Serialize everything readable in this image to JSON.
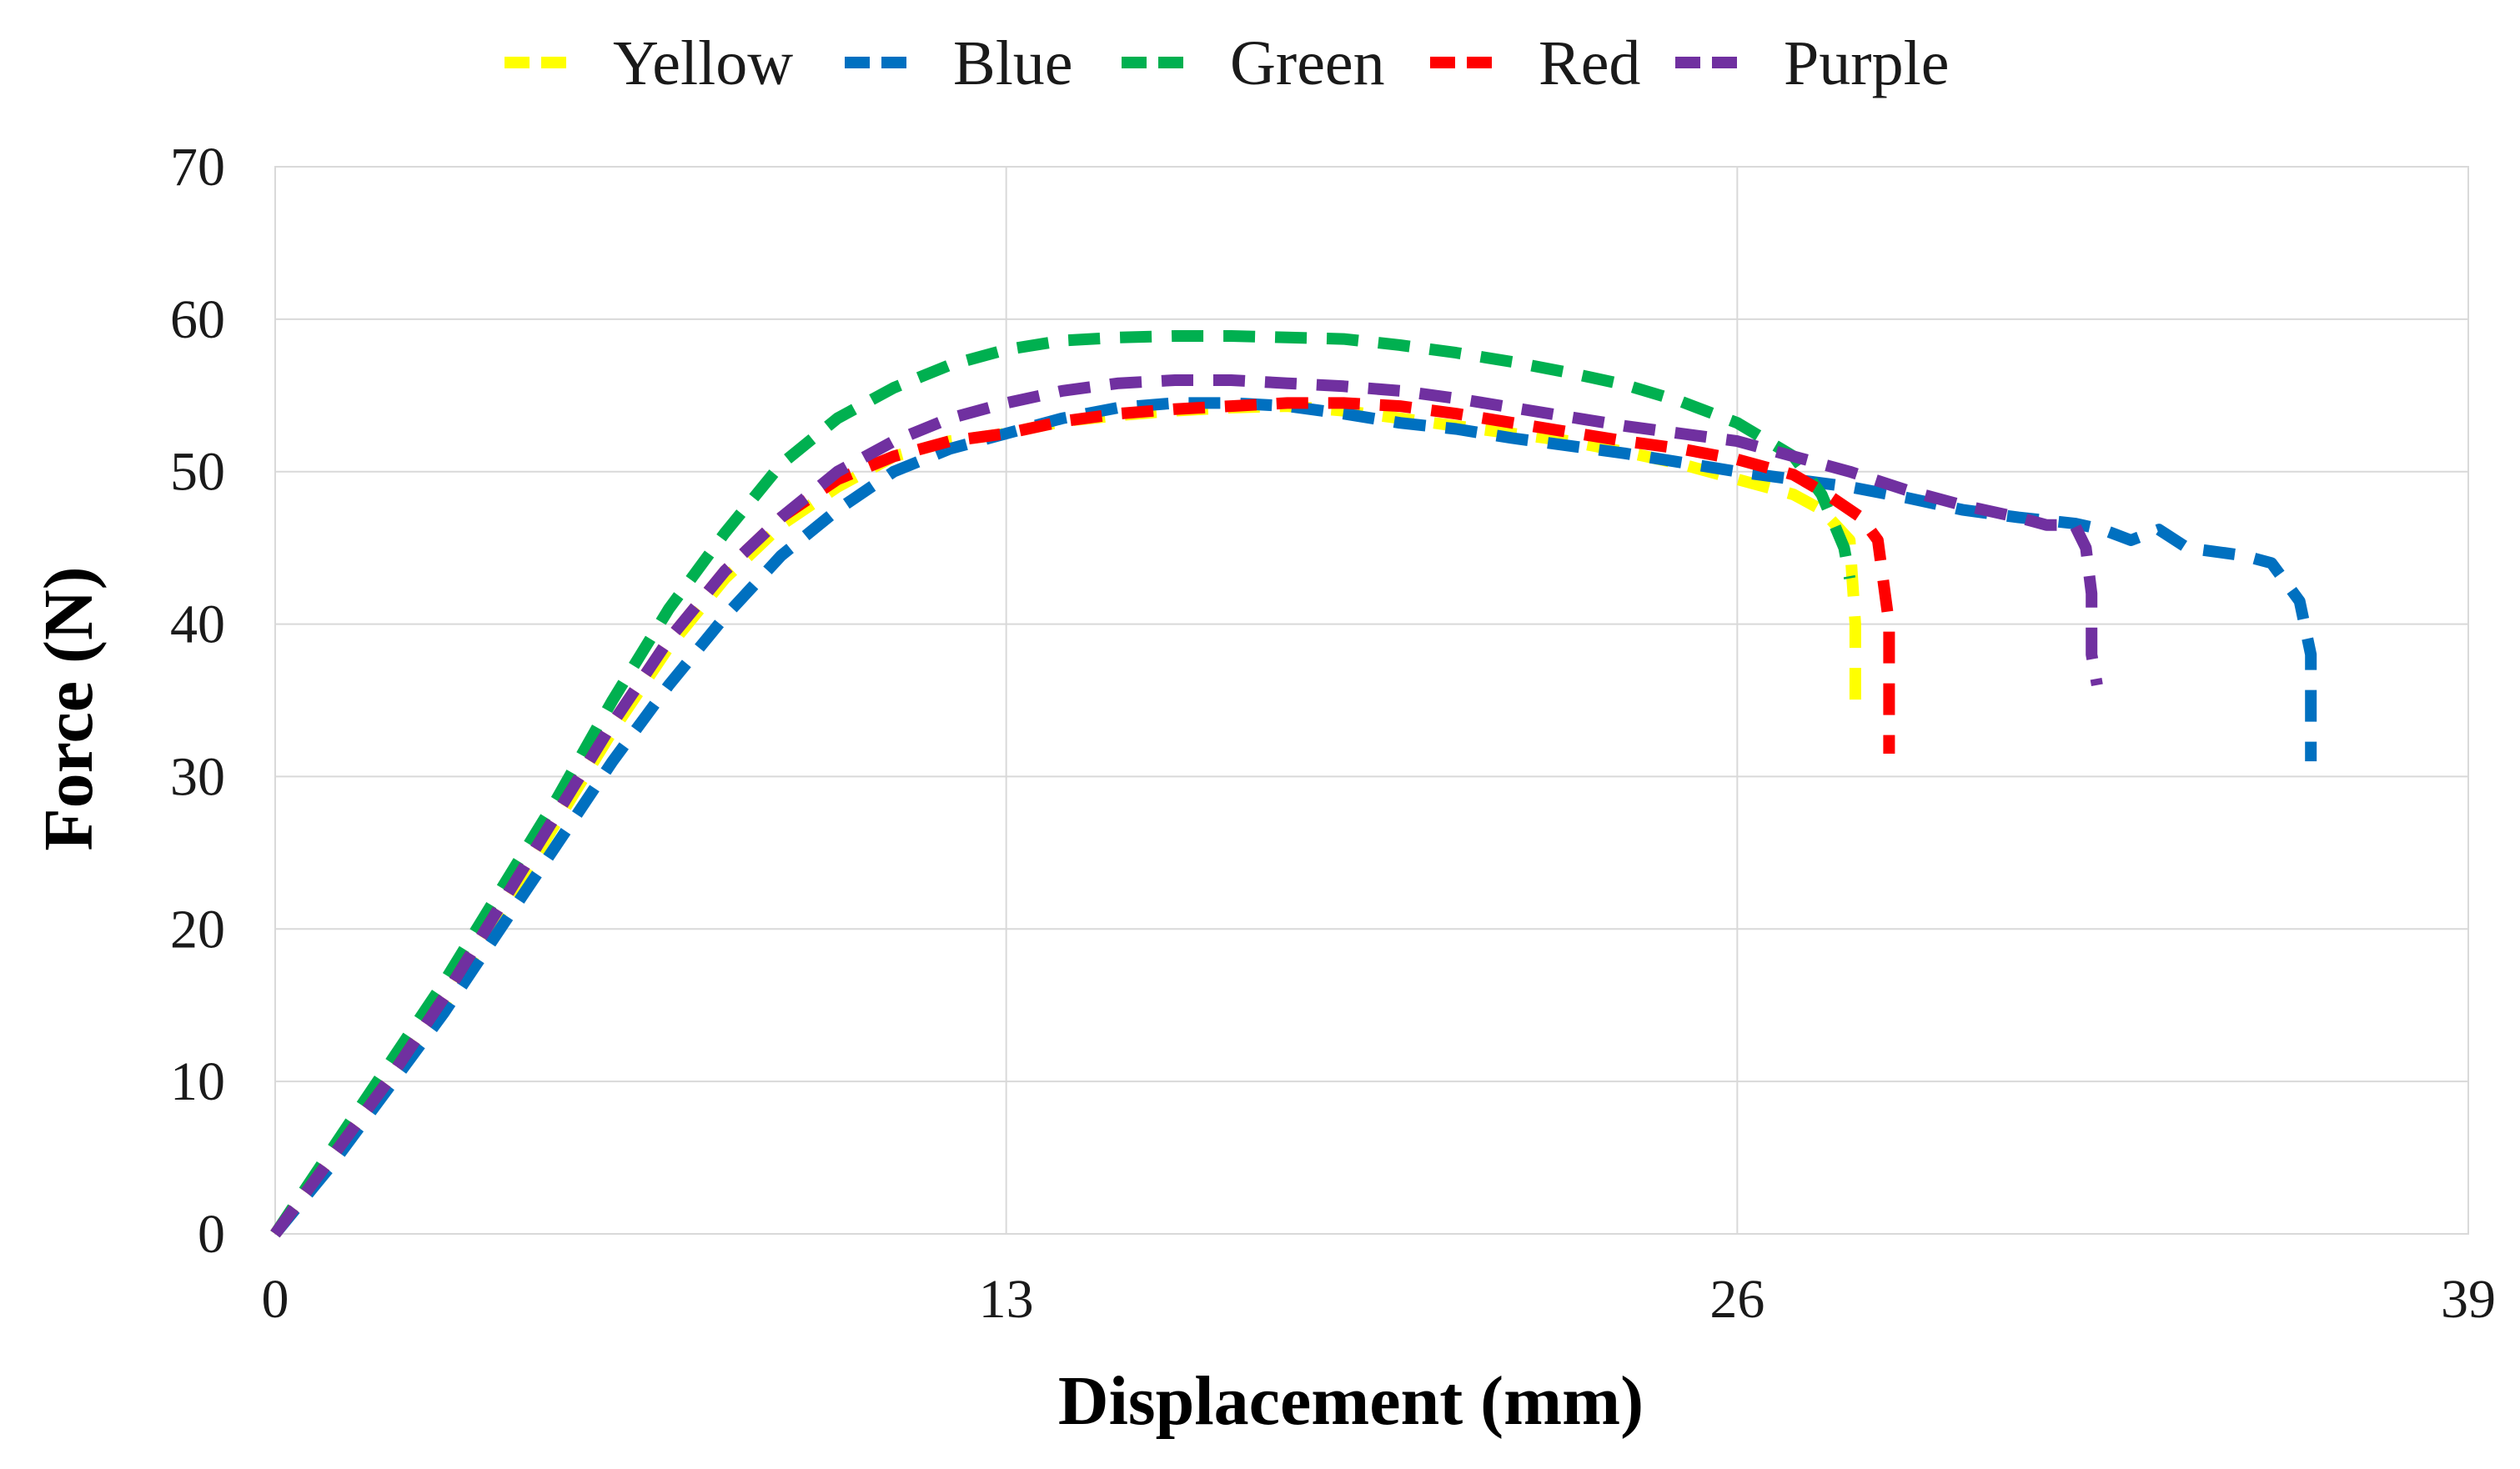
{
  "chart_data": {
    "type": "line",
    "title": "",
    "xlabel": "Displacement (mm)",
    "ylabel": "Force (N)",
    "xlim": [
      0,
      39
    ],
    "ylim": [
      0,
      70
    ],
    "xticks": [
      0,
      13,
      26,
      39
    ],
    "yticks": [
      0,
      10,
      20,
      30,
      40,
      50,
      60,
      70
    ],
    "grid": true,
    "legend_position": "top",
    "series": [
      {
        "name": "Yellow",
        "color": "#ffff00",
        "x": [
          0,
          1,
          2,
          3,
          4,
          5,
          6,
          7,
          8,
          9,
          10,
          11,
          12,
          13,
          14,
          15,
          16,
          17,
          18,
          19,
          20,
          21,
          22,
          23,
          24,
          25,
          26,
          27,
          27.5,
          28,
          28.1,
          28.1
        ],
        "y": [
          0,
          5,
          10,
          15,
          21,
          27,
          33,
          38.5,
          43,
          46.5,
          49,
          51,
          52,
          52.5,
          53.3,
          53.7,
          54,
          54.2,
          54.3,
          54,
          53.5,
          53,
          52.5,
          52,
          51.3,
          50.5,
          49.5,
          48.5,
          47.5,
          45.5,
          40,
          34.5
        ]
      },
      {
        "name": "Blue",
        "color": "#0070c0",
        "x": [
          0,
          1,
          2,
          3,
          4,
          5,
          6,
          7,
          8,
          9,
          10,
          11,
          12,
          13,
          14,
          15,
          16,
          17,
          18,
          19,
          20,
          21,
          22,
          23,
          24,
          25,
          26,
          27,
          28,
          29,
          30,
          31,
          32,
          32.5,
          33,
          33.5,
          34,
          35,
          35.5,
          36,
          36.2,
          36.2
        ],
        "y": [
          0,
          4.5,
          9.5,
          14.5,
          20,
          25.5,
          31,
          36,
          40.5,
          44.5,
          47.5,
          50,
          51.5,
          52.5,
          53.5,
          54.2,
          54.5,
          54.5,
          54.3,
          53.8,
          53.2,
          52.8,
          52.2,
          51.7,
          51.2,
          50.6,
          50,
          49.5,
          49,
          48.3,
          47.5,
          47,
          46.6,
          46.2,
          45.5,
          46.2,
          45,
          44.5,
          44,
          41.5,
          38,
          31
        ]
      },
      {
        "name": "Green",
        "color": "#00b050",
        "x": [
          0,
          1,
          2,
          3,
          4,
          5,
          6,
          7,
          8,
          9,
          10,
          11,
          12,
          13,
          14,
          15,
          16,
          17,
          18,
          19,
          20,
          21,
          22,
          23,
          24,
          25,
          26,
          27,
          27.5,
          27.9,
          28.0
        ],
        "y": [
          0,
          5.5,
          11,
          16.5,
          22.5,
          28.5,
          35,
          41,
          46,
          50.5,
          53.5,
          55.5,
          57,
          58,
          58.6,
          58.8,
          58.9,
          58.9,
          58.8,
          58.7,
          58.3,
          57.8,
          57.2,
          56.5,
          55.7,
          54.6,
          53.2,
          51,
          48.5,
          45,
          43
        ]
      },
      {
        "name": "Red",
        "color": "#ff0000",
        "x": [
          0,
          1,
          2,
          3,
          4,
          5,
          6,
          7,
          8,
          9,
          10,
          11,
          12,
          13,
          14,
          15,
          16,
          17,
          18,
          19,
          20,
          21,
          22,
          23,
          24,
          25,
          26,
          27,
          27.6,
          28.2,
          28.5,
          28.7,
          28.7,
          28.7
        ],
        "y": [
          0,
          5,
          10,
          15.5,
          21.5,
          27.5,
          33.5,
          39,
          43.5,
          47,
          49.5,
          51,
          52,
          52.5,
          53.3,
          53.8,
          54.1,
          54.3,
          54.5,
          54.5,
          54.3,
          53.8,
          53.2,
          52.6,
          52,
          51.5,
          50.8,
          49.8,
          48.5,
          47,
          45.5,
          40,
          35.5,
          31.5
        ]
      },
      {
        "name": "Purple",
        "color": "#7030a0",
        "x": [
          0,
          1,
          2,
          3,
          4,
          5,
          6,
          7,
          8,
          9,
          10,
          11,
          12,
          13,
          14,
          15,
          16,
          17,
          18,
          19,
          20,
          21,
          22,
          23,
          24,
          25,
          26,
          27,
          28,
          29,
          30,
          31,
          31.5,
          32,
          32.2,
          32.3,
          32.3,
          32.4
        ],
        "y": [
          0,
          5,
          10,
          15.5,
          21.5,
          27.5,
          33.5,
          39,
          43.5,
          47,
          50,
          52,
          53.5,
          54.5,
          55.3,
          55.8,
          56,
          56,
          55.8,
          55.6,
          55.3,
          54.8,
          54.2,
          53.6,
          53,
          52.5,
          52,
          51,
          50,
          48.8,
          47.8,
          47,
          46.5,
          46.5,
          45,
          42,
          38,
          36
        ]
      }
    ]
  }
}
